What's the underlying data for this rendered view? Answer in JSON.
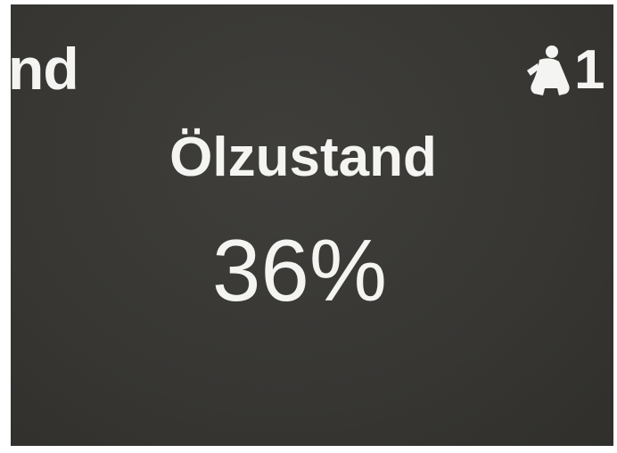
{
  "status_bar": {
    "left_label": "nd",
    "seat_number": "1"
  },
  "display": {
    "title": "Ölzustand",
    "value": "36%"
  }
}
